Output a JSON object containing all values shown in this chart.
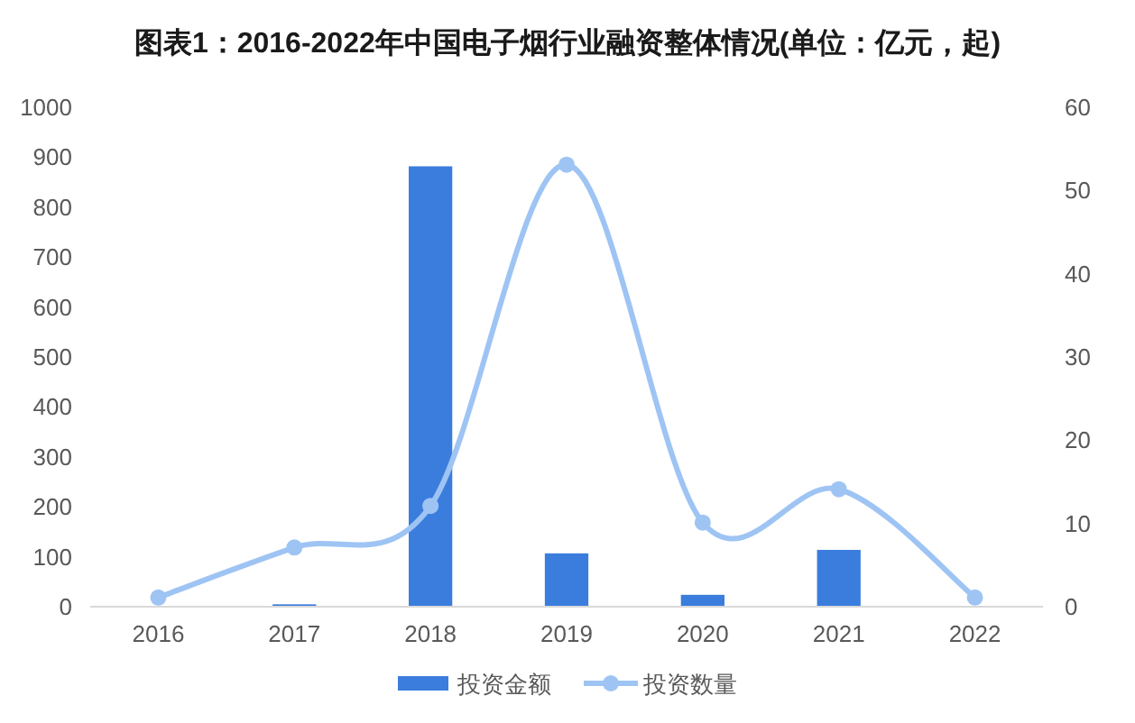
{
  "chart_data": {
    "type": "bar",
    "title": "图表1：2016-2022年中国电子烟行业融资整体情况(单位：亿元，起)",
    "categories": [
      "2016",
      "2017",
      "2018",
      "2019",
      "2020",
      "2021",
      "2022"
    ],
    "series": [
      {
        "name": "投资金额",
        "color": "#3b7ddd",
        "values": [
          null,
          3,
          880,
          105,
          22,
          112,
          null
        ]
      },
      {
        "name": "投资数量",
        "type": "line",
        "axis": "y2",
        "color": "#9ec4f4",
        "values": [
          1,
          7,
          12,
          53,
          10,
          14,
          1
        ]
      }
    ],
    "ylim": [
      0,
      1000
    ],
    "yticks": [
      0,
      100,
      200,
      300,
      400,
      500,
      600,
      700,
      800,
      900,
      1000
    ],
    "y2lim": [
      0,
      60
    ],
    "y2ticks": [
      0,
      10,
      20,
      30,
      40,
      50,
      60
    ],
    "marker": "circle",
    "legend": "bottom"
  }
}
